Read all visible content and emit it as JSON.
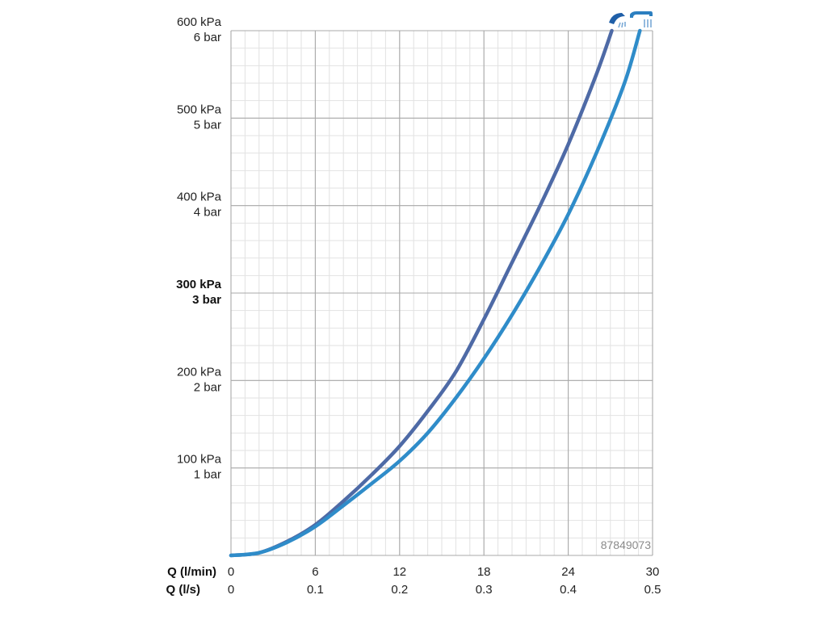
{
  "chart_data": {
    "type": "line",
    "x_primary_label": "Q (l/min)",
    "x_secondary_label": "Q (l/s)",
    "x_primary_ticks": [
      "0",
      "6",
      "12",
      "18",
      "24",
      "30"
    ],
    "x_secondary_ticks": [
      "0",
      "0.1",
      "0.2",
      "0.3",
      "0.4",
      "0.5"
    ],
    "xlim": [
      0,
      30
    ],
    "ylim": [
      0,
      600
    ],
    "y_ticks": [
      {
        "value": 100,
        "kpa": "100 kPa",
        "bar": "1 bar",
        "bold": false
      },
      {
        "value": 200,
        "kpa": "200 kPa",
        "bar": "2 bar",
        "bold": false
      },
      {
        "value": 300,
        "kpa": "300 kPa",
        "bar": "3 bar",
        "bold": true
      },
      {
        "value": 400,
        "kpa": "400 kPa",
        "bar": "4 bar",
        "bold": false
      },
      {
        "value": 500,
        "kpa": "500 kPa",
        "bar": "5 bar",
        "bold": false
      },
      {
        "value": 600,
        "kpa": "600 kPa",
        "bar": "6 bar",
        "bold": false
      }
    ],
    "grid": true,
    "series": [
      {
        "icon": "hand-shower-spray-icon",
        "color": "#4e6aa6",
        "x": [
          0,
          2,
          4,
          6,
          8,
          10,
          12,
          14,
          16,
          18,
          20,
          22,
          24,
          26,
          27.1
        ],
        "y": [
          0,
          3,
          16,
          35,
          62,
          92,
          125,
          165,
          210,
          270,
          335,
          400,
          470,
          550,
          600
        ]
      },
      {
        "icon": "overhead-shower-rain-icon",
        "color": "#2f8cc9",
        "x": [
          0,
          2,
          4,
          6,
          8,
          10,
          12,
          14,
          16,
          18,
          20,
          22,
          24,
          26,
          28,
          29.1
        ],
        "y": [
          0,
          3,
          15,
          33,
          57,
          82,
          108,
          140,
          180,
          225,
          275,
          330,
          390,
          460,
          540,
          600
        ]
      }
    ],
    "watermark": "87849073"
  }
}
